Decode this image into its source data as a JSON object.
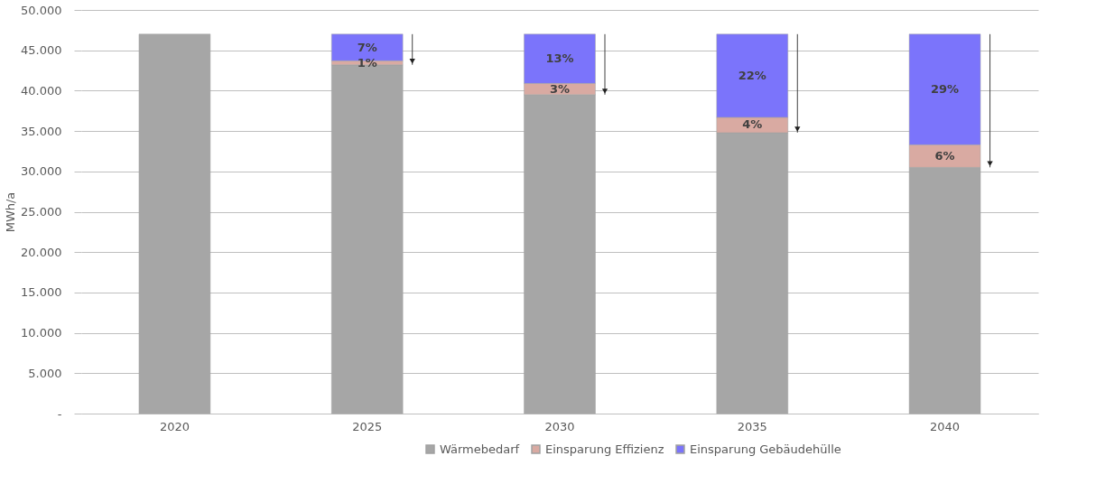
{
  "chart_data": {
    "type": "bar",
    "stacked": true,
    "ylabel": "MWh/a",
    "categories": [
      "2020",
      "2025",
      "2030",
      "2035",
      "2040"
    ],
    "series": [
      {
        "name": "Wärmebedarf",
        "color": "#a6a6a6",
        "values": [
          47000,
          43200,
          39500,
          34800,
          30500
        ]
      },
      {
        "name": "Einsparung Effizienz",
        "color": "#d9aaa2",
        "values": [
          null,
          500,
          1400,
          1900,
          2800
        ]
      },
      {
        "name": "Einsparung Gebäudehülle",
        "color": "#7b74fb",
        "values": [
          null,
          3300,
          6100,
          10300,
          13700
        ]
      }
    ],
    "annotations": [
      "1%",
      "7%",
      "3%",
      "13%",
      "4%",
      "22%",
      "6%",
      "29%"
    ],
    "ylim": [
      0,
      50000
    ],
    "yticks": [
      {
        "value": 0,
        "label": "-"
      },
      {
        "value": 5000,
        "label": "5.000"
      },
      {
        "value": 10000,
        "label": "10.000"
      },
      {
        "value": 15000,
        "label": "15.000"
      },
      {
        "value": 20000,
        "label": "20.000"
      },
      {
        "value": 25000,
        "label": "25.000"
      },
      {
        "value": 30000,
        "label": "30.000"
      },
      {
        "value": 35000,
        "label": "35.000"
      },
      {
        "value": 40000,
        "label": "40.000"
      },
      {
        "value": 45000,
        "label": "45.000"
      },
      {
        "value": 50000,
        "label": "50.000"
      }
    ],
    "grid": "y",
    "legend": "bottom"
  }
}
